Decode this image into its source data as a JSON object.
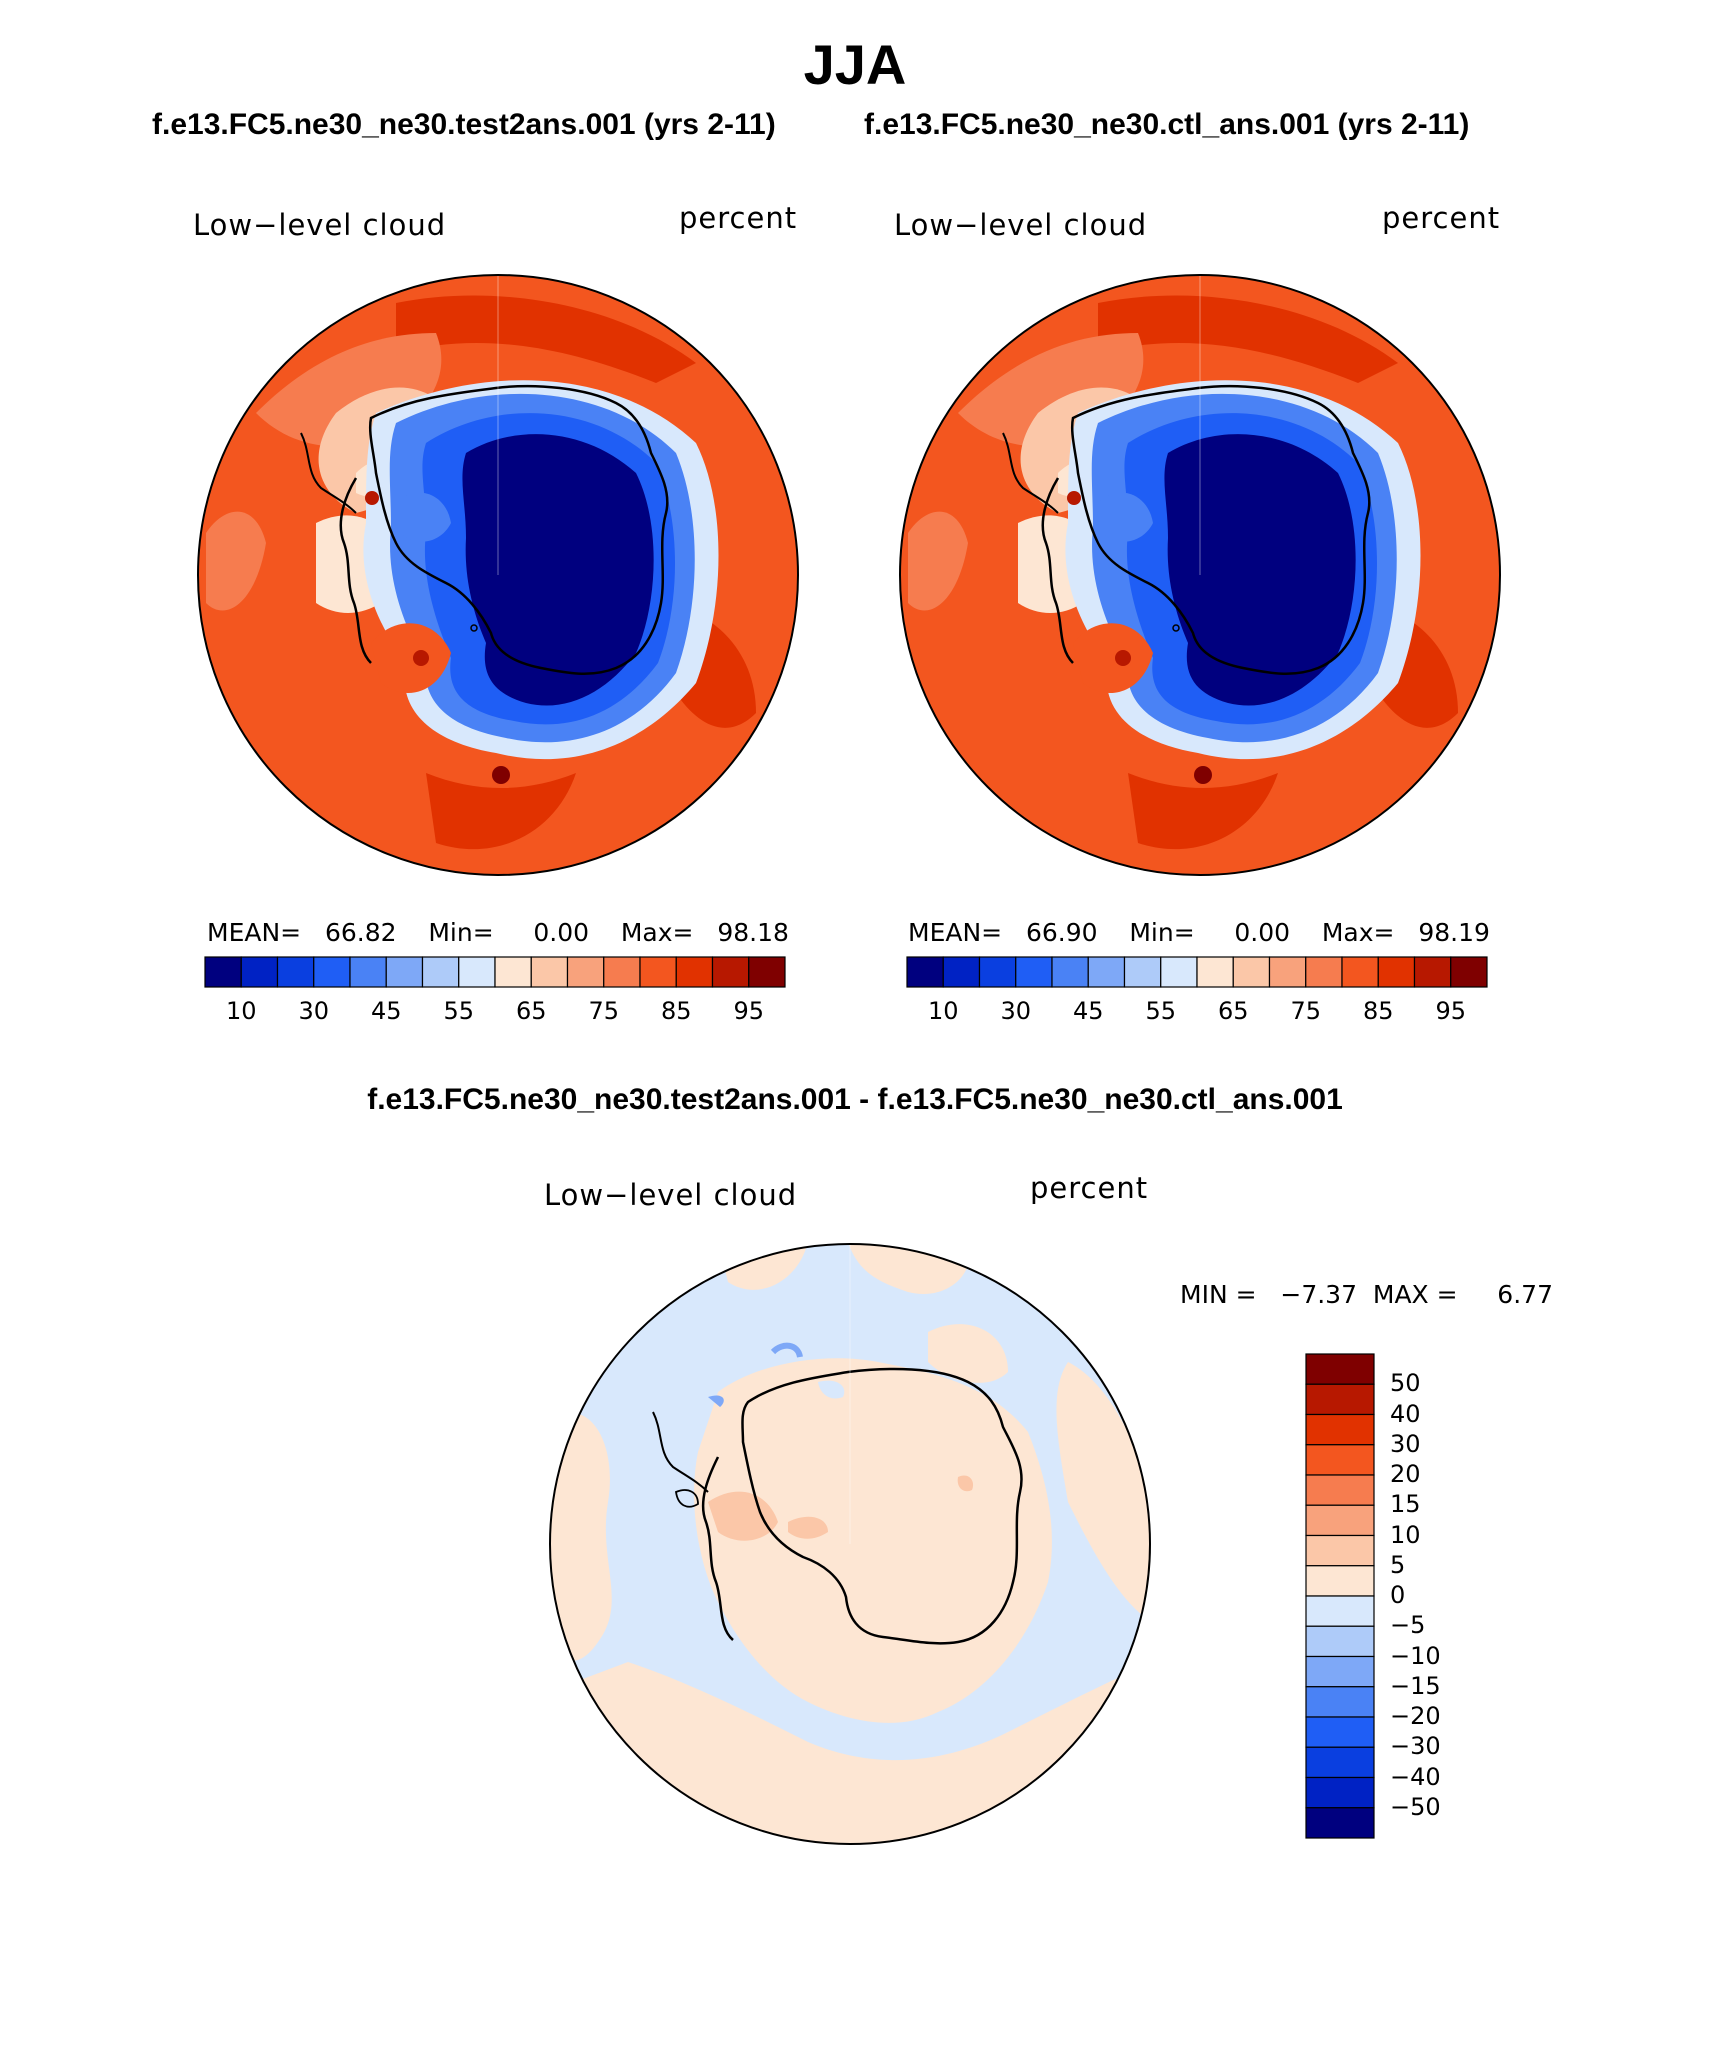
{
  "season": "JJA",
  "case_test": "f.e13.FC5.ne30_ne30.test2ans.001 (yrs 2-11)",
  "case_ctl": "f.e13.FC5.ne30_ne30.ctl_ans.001 (yrs 2-11)",
  "diff_title": "f.e13.FC5.ne30_ne30.test2ans.001 - f.e13.FC5.ne30_ne30.ctl_ans.001",
  "panels": [
    {
      "field": "Low−level cloud",
      "units": "percent",
      "mean_label": "MEAN=",
      "mean": "66.82",
      "min_label": "Min=",
      "min": "0.00",
      "max_label": "Max=",
      "max": "98.18"
    },
    {
      "field": "Low−level cloud",
      "units": "percent",
      "mean_label": "MEAN=",
      "mean": "66.90",
      "min_label": "Min=",
      "min": "0.00",
      "max_label": "Max=",
      "max": "98.19"
    }
  ],
  "diff_panel": {
    "field": "Low−level cloud",
    "units": "percent",
    "min_max_text": "MIN =   −7.37  MAX =     6.77"
  },
  "colorbar": {
    "colors": [
      "#00007f",
      "#0022c4",
      "#0a3fe0",
      "#1f5ef5",
      "#4a82f5",
      "#7ea8f7",
      "#aecbf9",
      "#d8e8fc",
      "#fde6d3",
      "#fbc7a8",
      "#f8a27c",
      "#f67c4f",
      "#f3561f",
      "#e13200",
      "#b71800",
      "#7f0000"
    ],
    "tick_labels": [
      "10",
      "30",
      "45",
      "55",
      "65",
      "75",
      "85",
      "95"
    ]
  },
  "diff_colorbar": {
    "colors_top_to_bottom": [
      "#7f0000",
      "#b71800",
      "#e13200",
      "#f3561f",
      "#f67c4f",
      "#f8a27c",
      "#fbc7a8",
      "#fde6d3",
      "#d8e8fc",
      "#aecbf9",
      "#7ea8f7",
      "#4a82f5",
      "#1f5ef5",
      "#0a3fe0",
      "#0022c4",
      "#00007f"
    ],
    "tick_labels": [
      "50",
      "40",
      "30",
      "20",
      "15",
      "10",
      "5",
      "0",
      "−5",
      "−10",
      "−15",
      "−20",
      "−30",
      "−40",
      "−50"
    ]
  }
}
